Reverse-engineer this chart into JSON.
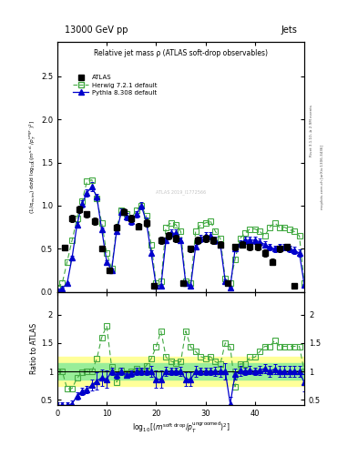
{
  "title_top_left": "13000 GeV pp",
  "title_top_right": "Jets",
  "plot_title": "Relative jet mass ρ (ATLAS soft-drop observables)",
  "right_label1": "Rivet 3.1.10, ≥ 2.9M events",
  "right_label2": "mcplots.cern.ch [arXiv:1306.3436]",
  "watermark": "ATLAS 2019_I1772566",
  "ylabel_main": "(1/σ$_{resim}$) dσ/d log$_{10}$[(m$^{soft drop}$/p$_T^{ungroomed}$)$^2$]",
  "ylabel_ratio": "Ratio to ATLAS",
  "xlabel": "log$_{10}$[(m$^{soft drop}$/p$_T^{ungroomed}$)$^2$]",
  "xlim": [
    0,
    50
  ],
  "ylim_main": [
    0,
    2.9
  ],
  "ylim_ratio": [
    0.4,
    2.4
  ],
  "yticks_main": [
    0,
    0.5,
    1.0,
    1.5,
    2.0,
    2.5
  ],
  "yticks_ratio": [
    0.5,
    1.0,
    1.5,
    2.0
  ],
  "xticks": [
    0,
    10,
    20,
    30,
    40
  ],
  "atlas_x": [
    1.5,
    3,
    4.5,
    6,
    7.5,
    9,
    10.5,
    12,
    13.5,
    15,
    16.5,
    18,
    19.5,
    21,
    22.5,
    24,
    25.5,
    27,
    28.5,
    30,
    31.5,
    33,
    34.5,
    36,
    37.5,
    39,
    40.5,
    42,
    43.5,
    45,
    46.5,
    48
  ],
  "atlas_y": [
    0.51,
    0.85,
    0.96,
    0.9,
    0.82,
    0.5,
    0.25,
    0.75,
    0.93,
    0.85,
    0.76,
    0.8,
    0.07,
    0.6,
    0.65,
    0.62,
    0.1,
    0.5,
    0.6,
    0.62,
    0.6,
    0.55,
    0.1,
    0.52,
    0.55,
    0.52,
    0.52,
    0.45,
    0.35,
    0.5,
    0.52,
    0.07
  ],
  "atlas_yerr": [
    0.03,
    0.04,
    0.04,
    0.04,
    0.04,
    0.03,
    0.02,
    0.04,
    0.04,
    0.04,
    0.04,
    0.04,
    0.01,
    0.04,
    0.04,
    0.04,
    0.01,
    0.04,
    0.04,
    0.04,
    0.04,
    0.04,
    0.01,
    0.04,
    0.04,
    0.04,
    0.04,
    0.04,
    0.04,
    0.04,
    0.04,
    0.01
  ],
  "herwig_x": [
    0,
    1,
    2,
    3,
    4,
    5,
    6,
    7,
    8,
    9,
    10,
    11,
    12,
    13,
    14,
    15,
    16,
    17,
    18,
    19,
    20,
    21,
    22,
    23,
    24,
    25,
    26,
    27,
    28,
    29,
    30,
    31,
    32,
    33,
    34,
    35,
    36,
    37,
    38,
    39,
    40,
    41,
    42,
    43,
    44,
    45,
    46,
    47,
    48,
    49,
    50
  ],
  "herwig_y": [
    0.05,
    0.1,
    0.35,
    0.6,
    0.85,
    1.05,
    1.28,
    1.3,
    1.08,
    0.8,
    0.45,
    0.27,
    0.75,
    0.95,
    0.9,
    0.85,
    0.95,
    1.0,
    0.88,
    0.55,
    0.1,
    0.12,
    0.75,
    0.8,
    0.78,
    0.7,
    0.12,
    0.1,
    0.7,
    0.78,
    0.8,
    0.82,
    0.7,
    0.62,
    0.15,
    0.1,
    0.38,
    0.62,
    0.68,
    0.73,
    0.73,
    0.7,
    0.65,
    0.75,
    0.8,
    0.75,
    0.75,
    0.72,
    0.7,
    0.65,
    0.1
  ],
  "pythia_x": [
    0,
    1,
    2,
    3,
    4,
    5,
    6,
    7,
    8,
    9,
    10,
    11,
    12,
    13,
    14,
    15,
    16,
    17,
    18,
    19,
    20,
    21,
    22,
    23,
    24,
    25,
    26,
    27,
    28,
    29,
    30,
    31,
    32,
    33,
    34,
    35,
    36,
    37,
    38,
    39,
    40,
    41,
    42,
    43,
    44,
    45,
    46,
    47,
    48,
    49,
    50
  ],
  "pythia_y": [
    0.02,
    0.04,
    0.1,
    0.4,
    0.78,
    1.02,
    1.15,
    1.22,
    1.1,
    0.72,
    0.35,
    0.25,
    0.7,
    0.93,
    0.87,
    0.82,
    0.9,
    1.0,
    0.82,
    0.45,
    0.07,
    0.07,
    0.6,
    0.68,
    0.68,
    0.6,
    0.1,
    0.07,
    0.52,
    0.62,
    0.65,
    0.65,
    0.6,
    0.55,
    0.12,
    0.05,
    0.5,
    0.56,
    0.6,
    0.6,
    0.6,
    0.58,
    0.55,
    0.52,
    0.5,
    0.52,
    0.52,
    0.5,
    0.48,
    0.45,
    0.08
  ],
  "pythia_yerr": [
    0.005,
    0.01,
    0.01,
    0.02,
    0.03,
    0.04,
    0.04,
    0.05,
    0.04,
    0.03,
    0.02,
    0.02,
    0.03,
    0.04,
    0.04,
    0.04,
    0.04,
    0.04,
    0.04,
    0.03,
    0.01,
    0.01,
    0.03,
    0.04,
    0.04,
    0.03,
    0.01,
    0.01,
    0.03,
    0.04,
    0.04,
    0.04,
    0.04,
    0.04,
    0.02,
    0.01,
    0.03,
    0.04,
    0.04,
    0.04,
    0.04,
    0.04,
    0.04,
    0.04,
    0.04,
    0.04,
    0.04,
    0.04,
    0.04,
    0.04,
    0.01
  ],
  "yellow_lo": 0.75,
  "yellow_hi": 1.25,
  "green_lo": 0.85,
  "green_hi": 1.15,
  "ratio_herwig_x": [
    0,
    1,
    2,
    3,
    4,
    5,
    6,
    7,
    8,
    9,
    10,
    11,
    12,
    13,
    14,
    15,
    16,
    17,
    18,
    19,
    20,
    21,
    22,
    23,
    24,
    25,
    26,
    27,
    28,
    29,
    30,
    31,
    32,
    33,
    34,
    35,
    36,
    37,
    38,
    39,
    40,
    41,
    42,
    43,
    44,
    45,
    46,
    47,
    48,
    49,
    50
  ],
  "ratio_herwig_y": [
    1.0,
    1.0,
    0.69,
    0.7,
    0.88,
    0.98,
    1.0,
    1.0,
    1.22,
    1.6,
    1.8,
    1.08,
    0.81,
    1.02,
    0.97,
    1.0,
    1.05,
    1.0,
    1.1,
    1.22,
    1.43,
    1.71,
    1.25,
    1.18,
    1.15,
    1.17,
    1.71,
    1.43,
    1.35,
    1.26,
    1.23,
    1.26,
    1.17,
    1.13,
    1.5,
    1.43,
    0.73,
    1.13,
    1.13,
    1.25,
    1.25,
    1.35,
    1.44,
    1.44,
    1.54,
    1.44,
    1.44,
    1.44,
    1.44,
    1.44,
    1.0
  ],
  "ratio_pythia_x": [
    0,
    1,
    2,
    3,
    4,
    5,
    6,
    7,
    8,
    9,
    10,
    11,
    12,
    13,
    14,
    15,
    16,
    17,
    18,
    19,
    20,
    21,
    22,
    23,
    24,
    25,
    26,
    27,
    28,
    29,
    30,
    31,
    32,
    33,
    34,
    35,
    36,
    37,
    38,
    39,
    40,
    41,
    42,
    43,
    44,
    45,
    46,
    47,
    48,
    49,
    50
  ],
  "ratio_pythia_y": [
    0.4,
    0.4,
    0.29,
    0.43,
    0.57,
    0.65,
    0.68,
    0.76,
    0.83,
    0.89,
    0.86,
    1.0,
    0.93,
    1.0,
    0.94,
    0.96,
    1.0,
    1.0,
    1.0,
    1.0,
    0.86,
    0.86,
    1.0,
    1.0,
    1.0,
    1.0,
    0.86,
    0.86,
    1.0,
    1.0,
    1.0,
    1.0,
    1.0,
    1.0,
    1.0,
    0.43,
    0.95,
    1.01,
    1.0,
    1.02,
    1.0,
    1.02,
    1.05,
    1.0,
    1.04,
    1.0,
    1.0,
    1.0,
    1.0,
    1.0,
    0.8
  ],
  "ratio_pythia_yerr": [
    0.05,
    0.05,
    0.05,
    0.05,
    0.06,
    0.06,
    0.06,
    0.1,
    0.15,
    0.15,
    0.15,
    0.07,
    0.06,
    0.06,
    0.06,
    0.06,
    0.06,
    0.07,
    0.07,
    0.1,
    0.15,
    0.15,
    0.08,
    0.07,
    0.07,
    0.08,
    0.12,
    0.12,
    0.09,
    0.07,
    0.07,
    0.07,
    0.08,
    0.1,
    0.15,
    0.12,
    0.1,
    0.09,
    0.07,
    0.07,
    0.07,
    0.08,
    0.08,
    0.09,
    0.09,
    0.09,
    0.1,
    0.1,
    0.1,
    0.1,
    0.15
  ],
  "color_atlas": "#000000",
  "color_herwig": "#44aa44",
  "color_pythia": "#0000cc",
  "color_yellow": "#ffff99",
  "color_green": "#99ee99",
  "bg_color": "#ffffff",
  "legend_atlas": "ATLAS",
  "legend_herwig": "Herwig 7.2.1 default",
  "legend_pythia": "Pythia 8.308 default"
}
